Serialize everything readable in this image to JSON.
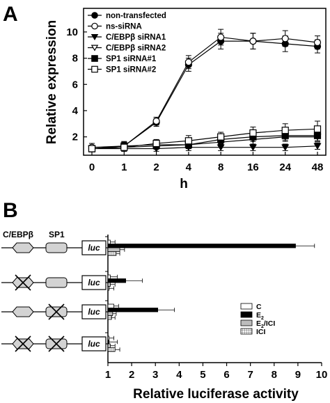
{
  "panels": [
    "A",
    "B"
  ],
  "chart_data": [
    {
      "type": "line",
      "xlabel": "h",
      "ylabel": "Relative expression",
      "categories": [
        "0",
        "1",
        "2",
        "4",
        "8",
        "16",
        "24",
        "48"
      ],
      "yticks": [
        2,
        4,
        6,
        8,
        10
      ],
      "ylim": [
        0.6,
        11.8
      ],
      "legend_position": "top-left",
      "series": [
        {
          "name": "non-transfected",
          "marker": "filled-circle",
          "values": [
            1.1,
            1.3,
            3.1,
            7.5,
            9.3,
            9.3,
            9.1,
            8.9
          ],
          "errors": [
            0.25,
            0.3,
            0.3,
            0.5,
            0.6,
            0.6,
            0.6,
            0.5
          ]
        },
        {
          "name": "ns-siRNA",
          "marker": "open-circle",
          "values": [
            1.2,
            1.3,
            3.2,
            7.7,
            9.6,
            9.3,
            9.5,
            9.2
          ],
          "errors": [
            0.3,
            0.35,
            0.3,
            0.5,
            0.6,
            0.6,
            0.6,
            0.5
          ]
        },
        {
          "name": "C/EBPβ siRNA1",
          "marker": "filled-triangle-down",
          "values": [
            1.1,
            1.1,
            1.1,
            1.2,
            1.2,
            1.2,
            1.2,
            1.3
          ],
          "errors": [
            0.2,
            0.2,
            0.2,
            0.25,
            0.25,
            0.25,
            0.25,
            0.25
          ]
        },
        {
          "name": "C/EBPβ siRNA2",
          "marker": "open-triangle-down",
          "values": [
            1.1,
            1.2,
            1.3,
            1.4,
            1.6,
            1.8,
            2.0,
            2.0
          ],
          "errors": [
            0.2,
            0.2,
            0.25,
            0.3,
            0.3,
            0.35,
            0.35,
            0.35
          ]
        },
        {
          "name": "SP1 siRNA#1",
          "marker": "filled-square",
          "values": [
            1.1,
            1.3,
            1.4,
            1.4,
            1.8,
            2.0,
            2.1,
            2.1
          ],
          "errors": [
            0.2,
            0.25,
            0.3,
            0.3,
            0.3,
            0.35,
            0.35,
            0.4
          ]
        },
        {
          "name": "SP1 siRNA#2",
          "marker": "open-square",
          "values": [
            1.1,
            1.2,
            1.5,
            1.7,
            2.0,
            2.3,
            2.5,
            2.6
          ],
          "errors": [
            0.2,
            0.3,
            0.3,
            0.4,
            0.35,
            0.45,
            0.5,
            0.6
          ]
        }
      ]
    },
    {
      "type": "bar",
      "orientation": "horizontal",
      "xlabel": "Relative luciferase activity",
      "xticks": [
        1,
        2,
        3,
        4,
        5,
        6,
        7,
        8,
        9,
        10
      ],
      "xlim": [
        1,
        10
      ],
      "legend_position": "right",
      "constructs": [
        "C/EBPβ + SP1",
        "ΔC/EBPβ + SP1",
        "C/EBPβ + ΔSP1",
        "ΔC/EBPβ + ΔSP1"
      ],
      "element_labels": {
        "cebpb": "C/EBPβ",
        "sp1": "SP1",
        "luc": "luc"
      },
      "series": [
        {
          "name": "C",
          "fill": "open",
          "values": [
            1.1,
            1.1,
            1.25,
            1.05
          ],
          "errors": [
            0.2,
            0.3,
            0.2,
            0.2
          ]
        },
        {
          "name": "E2",
          "fill": "black",
          "values": [
            8.9,
            1.75,
            3.1,
            1.05
          ],
          "errors": [
            0.8,
            0.7,
            0.7,
            0.35
          ]
        },
        {
          "name": "E2/ICI",
          "fill": "gray",
          "values": [
            1.5,
            1.1,
            1.2,
            1.1
          ],
          "errors": [
            0.2,
            0.2,
            0.15,
            0.2
          ]
        },
        {
          "name": "ICI",
          "fill": "hatched",
          "values": [
            1.35,
            1.05,
            1.15,
            1.3
          ],
          "errors": [
            0.15,
            0.2,
            0.15,
            0.2
          ]
        }
      ],
      "legend_labels": [
        {
          "base": "C",
          "sub": "",
          "rest": ""
        },
        {
          "base": "E",
          "sub": "2",
          "rest": ""
        },
        {
          "base": "E",
          "sub": "2",
          "rest": "/ICI"
        },
        {
          "base": "ICI",
          "sub": "",
          "rest": ""
        }
      ]
    }
  ]
}
